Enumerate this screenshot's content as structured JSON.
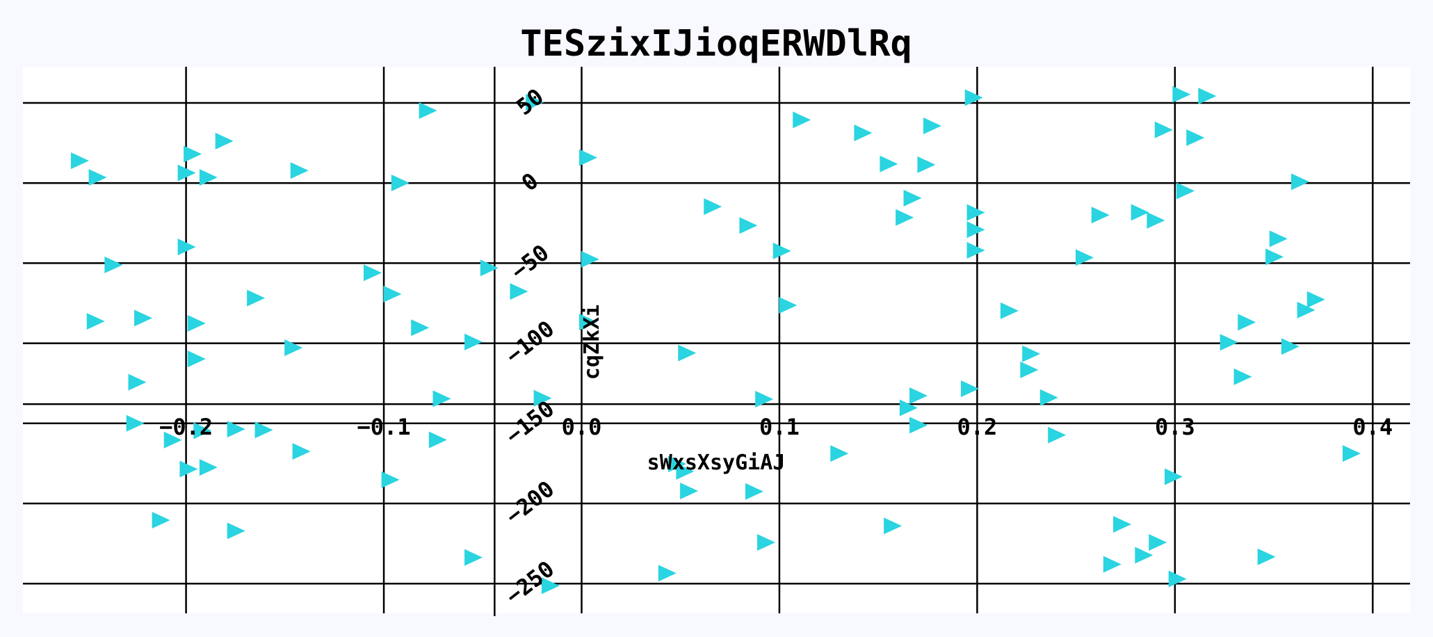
{
  "chart_data": {
    "type": "scatter",
    "title": "TESzixIJioqERWDlRq",
    "xlabel": "sWxsXsyGiAJ",
    "ylabel": "cqZkXi",
    "xlim": [
      -0.28,
      0.42
    ],
    "ylim": [
      -268,
      72
    ],
    "grid": true,
    "marker": "triangle-right",
    "colors": {
      "marker": "#2ad4e0",
      "background": "#f8f8ff",
      "plot_background": "#ffffff",
      "grid": "#000000"
    },
    "x_ticks": [
      {
        "value": -0.2,
        "label": "−0.2"
      },
      {
        "value": -0.1,
        "label": "−0.1"
      },
      {
        "value": 0.0,
        "label": "0.0"
      },
      {
        "value": 0.1,
        "label": "0.1"
      },
      {
        "value": 0.2,
        "label": "0.2"
      },
      {
        "value": 0.3,
        "label": "0.3"
      },
      {
        "value": 0.4,
        "label": "0.4"
      }
    ],
    "y_ticks": [
      {
        "value": 50,
        "label": "50"
      },
      {
        "value": 0,
        "label": "0"
      },
      {
        "value": -50,
        "label": "−50"
      },
      {
        "value": -100,
        "label": "−100"
      },
      {
        "value": -150,
        "label": "−150"
      },
      {
        "value": -200,
        "label": "−200"
      },
      {
        "value": -250,
        "label": "−250"
      }
    ],
    "x_axis_at_y": -138,
    "y_axis_at_x": -0.044,
    "points": [
      [
        -0.254,
        13.9
      ],
      [
        -0.245,
        3.5
      ],
      [
        -0.197,
        18.1
      ],
      [
        -0.181,
        26.2
      ],
      [
        -0.2,
        6.3
      ],
      [
        -0.189,
        3.5
      ],
      [
        -0.143,
        7.8
      ],
      [
        -0.092,
        0.1
      ],
      [
        -0.078,
        45.2
      ],
      [
        -0.024,
        50.4
      ],
      [
        0.003,
        15.9
      ],
      [
        0.111,
        39.4
      ],
      [
        0.142,
        31.3
      ],
      [
        0.177,
        35.7
      ],
      [
        0.198,
        53.3
      ],
      [
        0.303,
        55.3
      ],
      [
        0.316,
        54.3
      ],
      [
        0.294,
        33.2
      ],
      [
        0.31,
        28.3
      ],
      [
        0.155,
        11.9
      ],
      [
        0.174,
        11.4
      ],
      [
        0.305,
        -4.9
      ],
      [
        0.363,
        0.8
      ],
      [
        -0.2,
        -39.9
      ],
      [
        -0.237,
        -51.1
      ],
      [
        -0.106,
        -56.0
      ],
      [
        -0.047,
        -53.0
      ],
      [
        -0.096,
        -69.3
      ],
      [
        -0.032,
        -67.7
      ],
      [
        0.004,
        -47.6
      ],
      [
        0.066,
        -14.7
      ],
      [
        0.084,
        -26.5
      ],
      [
        0.167,
        -9.4
      ],
      [
        0.163,
        -21.5
      ],
      [
        0.101,
        -42.4
      ],
      [
        0.199,
        -18.4
      ],
      [
        0.199,
        -29.1
      ],
      [
        0.199,
        -42.0
      ],
      [
        0.254,
        -46.5
      ],
      [
        0.262,
        -20.0
      ],
      [
        0.282,
        -18.3
      ],
      [
        0.29,
        -23.3
      ],
      [
        0.352,
        -34.8
      ],
      [
        0.35,
        -46.1
      ],
      [
        -0.246,
        -86.3
      ],
      [
        -0.222,
        -84.3
      ],
      [
        -0.195,
        -87.6
      ],
      [
        -0.165,
        -71.8
      ],
      [
        -0.082,
        -90.3
      ],
      [
        0.003,
        -86.7
      ],
      [
        0.104,
        -76.3
      ],
      [
        0.216,
        -79.7
      ],
      [
        0.336,
        -86.9
      ],
      [
        0.371,
        -72.7
      ],
      [
        0.366,
        -79.3
      ],
      [
        -0.195,
        -109.8
      ],
      [
        -0.146,
        -102.8
      ],
      [
        -0.055,
        -99.2
      ],
      [
        0.053,
        -106.1
      ],
      [
        0.227,
        -106.6
      ],
      [
        0.226,
        -116.6
      ],
      [
        0.327,
        -99.4
      ],
      [
        0.358,
        -102.0
      ],
      [
        -0.225,
        -124.3
      ],
      [
        -0.071,
        -134.6
      ],
      [
        -0.02,
        -134.3
      ],
      [
        0.092,
        -134.9
      ],
      [
        0.17,
        -132.7
      ],
      [
        0.196,
        -128.4
      ],
      [
        0.236,
        -133.9
      ],
      [
        0.334,
        -120.9
      ],
      [
        0.165,
        -140.3
      ],
      [
        0.17,
        -151.1
      ],
      [
        -0.226,
        -150.0
      ],
      [
        -0.192,
        -154.6
      ],
      [
        -0.175,
        -153.6
      ],
      [
        -0.161,
        -154.1
      ],
      [
        -0.207,
        -160.4
      ],
      [
        -0.073,
        -160.3
      ],
      [
        -0.142,
        -167.5
      ],
      [
        -0.199,
        -178.5
      ],
      [
        -0.189,
        -177.5
      ],
      [
        -0.097,
        -185.2
      ],
      [
        0.048,
        -175.3
      ],
      [
        0.052,
        -180.0
      ],
      [
        0.054,
        -192.2
      ],
      [
        0.087,
        -192.5
      ],
      [
        0.13,
        -168.8
      ],
      [
        0.24,
        -157.3
      ],
      [
        0.299,
        -183.3
      ],
      [
        0.389,
        -168.8
      ],
      [
        -0.213,
        -210.4
      ],
      [
        -0.175,
        -217.1
      ],
      [
        0.157,
        -214.0
      ],
      [
        0.273,
        -213.0
      ],
      [
        0.093,
        -224.3
      ],
      [
        0.291,
        -224.3
      ],
      [
        0.284,
        -232.3
      ],
      [
        0.268,
        -238.0
      ],
      [
        -0.055,
        -233.7
      ],
      [
        0.043,
        -243.5
      ],
      [
        0.346,
        -233.3
      ],
      [
        0.301,
        -247.1
      ],
      [
        -0.016,
        -251.3
      ]
    ]
  }
}
